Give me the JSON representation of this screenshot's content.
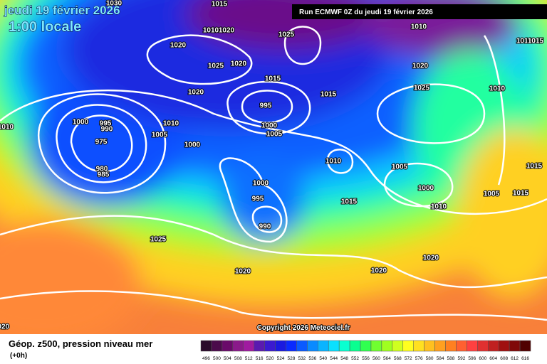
{
  "header": {
    "date": "jeudi 19 février 2026",
    "time": "1:00 locale",
    "run": "Run ECMWF 0Z du jeudi 19 février 2026"
  },
  "copyright": "Copyright 2026 Meteociel.fr",
  "footer": {
    "title": "Géop. z500, pression niveau mer",
    "lead": "(+0h)"
  },
  "isobar_labels": [
    "1030",
    "1015",
    "1010",
    "1020",
    "1025",
    "1010",
    "1010",
    "1015",
    "1020",
    "1025",
    "1020",
    "1020",
    "1015",
    "1025",
    "1010",
    "1020",
    "1015",
    "995",
    "1000",
    "1010",
    "1005",
    "1010",
    "1000",
    "995",
    "990",
    "1005",
    "975",
    "1000",
    "980",
    "985",
    "1010",
    "1005",
    "1015",
    "1000",
    "1000",
    "1005",
    "1015",
    "995",
    "1015",
    "1010",
    "990",
    "1025",
    "1020",
    "1020",
    "1020",
    "1020"
  ],
  "scale": {
    "values": [
      496,
      500,
      504,
      508,
      512,
      516,
      520,
      524,
      528,
      532,
      536,
      540,
      544,
      548,
      552,
      556,
      560,
      564,
      568,
      572,
      576,
      580,
      584,
      588,
      592,
      596,
      600,
      604,
      608,
      612,
      616
    ],
    "colors": [
      "#2a0a2a",
      "#4b0a4b",
      "#6a0a6a",
      "#8a1a8a",
      "#a01aa0",
      "#5a1ab0",
      "#3a1ad0",
      "#1a1ae0",
      "#0a2aff",
      "#0a5aff",
      "#0a8aff",
      "#0ab4ff",
      "#0ae0ff",
      "#0affd0",
      "#0aff90",
      "#30ff50",
      "#70ff30",
      "#a0ff20",
      "#d0ff20",
      "#ffff20",
      "#ffe020",
      "#ffc020",
      "#ffa020",
      "#ff8020",
      "#ff6030",
      "#ff4040",
      "#e03030",
      "#c02020",
      "#a01010",
      "#800808",
      "#500000"
    ]
  }
}
